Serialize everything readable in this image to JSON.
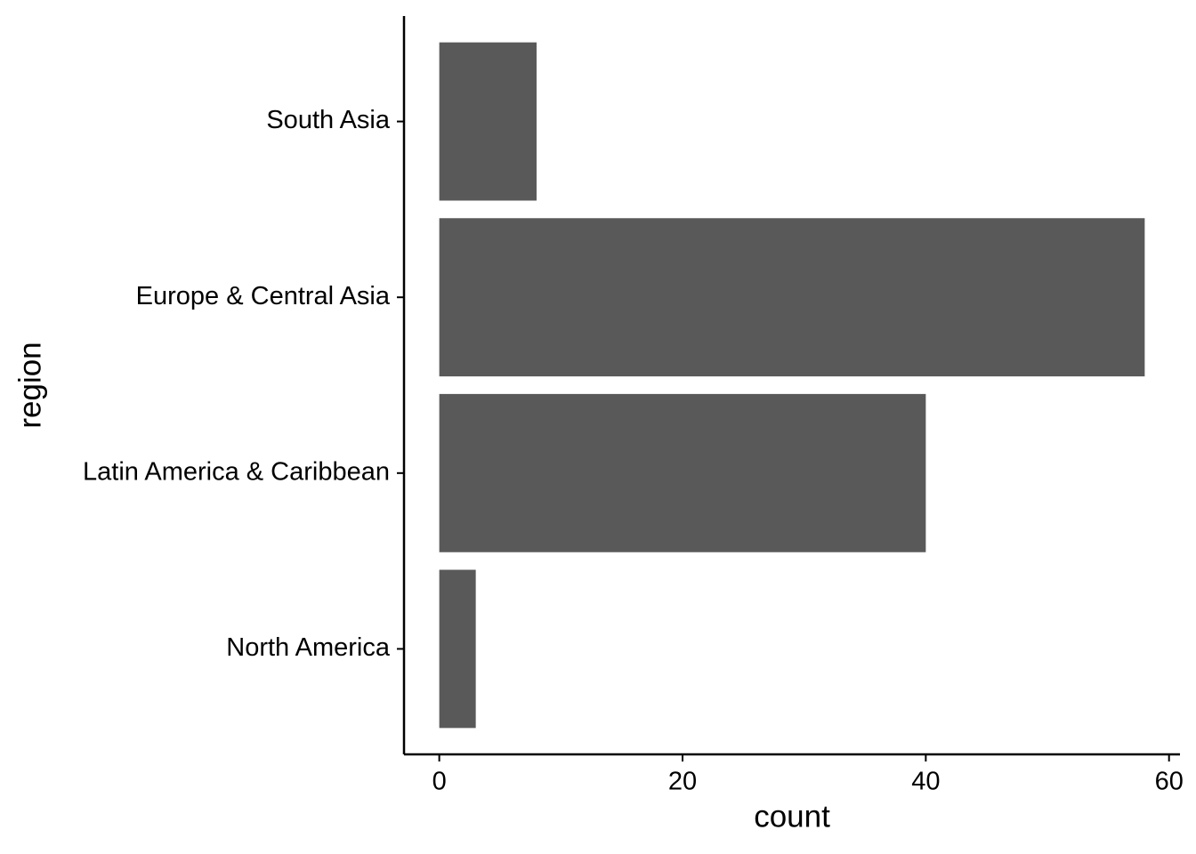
{
  "chart_data": {
    "type": "bar",
    "orientation": "horizontal",
    "x_label": "count",
    "y_label": "region",
    "categories": [
      "South Asia",
      "Europe & Central Asia",
      "Latin America & Caribbean",
      "North America"
    ],
    "values": [
      8,
      58,
      40,
      3
    ],
    "color": "#595959",
    "xlim": [
      -2.9,
      60.9
    ],
    "xticks": [
      0,
      20,
      40,
      60
    ],
    "grid": false
  }
}
